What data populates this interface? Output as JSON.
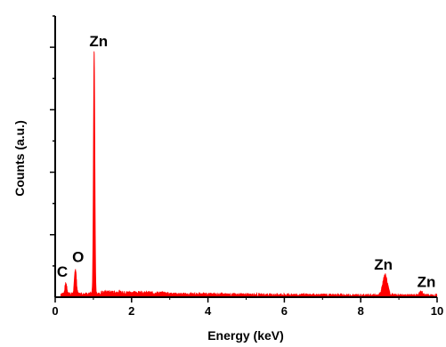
{
  "chart_data": {
    "type": "line",
    "xlabel": "Energy (keV)",
    "ylabel": "Counts (a.u.)",
    "xlim": [
      0,
      10
    ],
    "ylim": [
      0,
      100
    ],
    "x_ticks": [
      "0",
      "2",
      "4",
      "6",
      "8",
      "10"
    ],
    "y_tick_labels_shown": false,
    "grid": false,
    "legend": "none",
    "series_color": "#ff0000",
    "peaks": [
      {
        "label": "C",
        "x": 0.28,
        "y": 5.5
      },
      {
        "label": "O",
        "x": 0.53,
        "y": 11.5
      },
      {
        "label": "Zn",
        "x": 1.02,
        "y": 100
      },
      {
        "label": "Zn",
        "x": 8.64,
        "y": 9.0
      },
      {
        "label": "Zn",
        "x": 9.58,
        "y": 2.0
      }
    ],
    "background_level": 2.0
  }
}
